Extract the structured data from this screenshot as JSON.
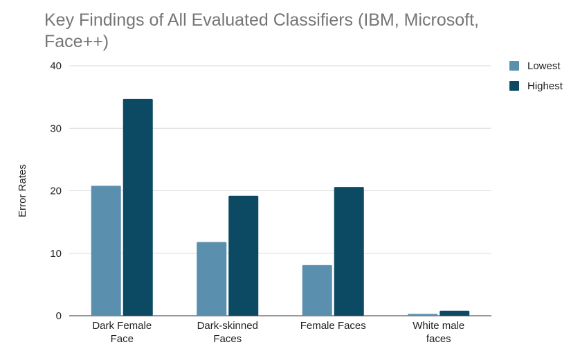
{
  "chart_data": {
    "type": "bar",
    "title": "Key Findings of All Evaluated Classifiers (IBM, Microsoft, Face++)",
    "xlabel": "",
    "ylabel": "Error Rates",
    "ylim": [
      0,
      40
    ],
    "yticks": [
      0,
      10,
      20,
      30,
      40
    ],
    "grid": true,
    "legend_position": "right",
    "categories": [
      [
        "Dark Female",
        "Face"
      ],
      [
        "Dark-skinned",
        "Faces"
      ],
      [
        "Female Faces"
      ],
      [
        "White male",
        "faces"
      ]
    ],
    "series": [
      {
        "name": "Lowest",
        "color": "#5b8fae",
        "values": [
          20.8,
          11.8,
          8.1,
          0.3
        ]
      },
      {
        "name": "Highest",
        "color": "#0c4a63",
        "values": [
          34.7,
          19.2,
          20.6,
          0.8
        ]
      }
    ]
  }
}
